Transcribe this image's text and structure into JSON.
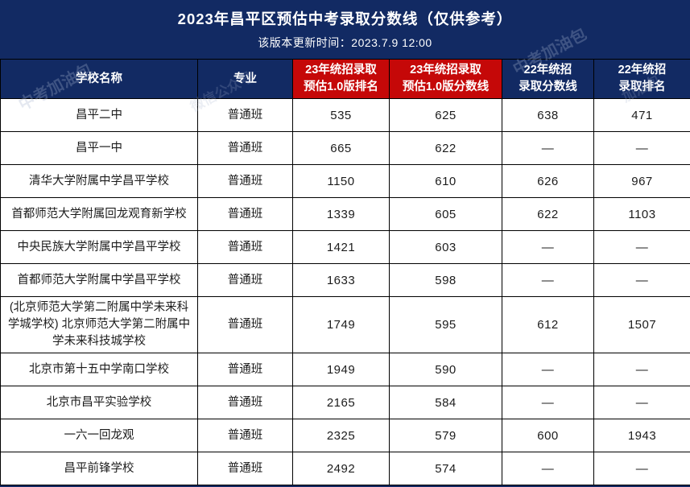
{
  "title_bar": {
    "title": "2023年昌平区预估中考录取分数线（仅供参考）",
    "subtitle": "该版本更新时间：2023.7.9 12:00"
  },
  "table": {
    "header": [
      {
        "line1": "学校名称",
        "line2": "",
        "highlight": false
      },
      {
        "line1": "专业",
        "line2": "",
        "highlight": false
      },
      {
        "line1": "23年统招录取",
        "line2": "预估1.0版排名",
        "highlight": true
      },
      {
        "line1": "23年统招录取",
        "line2": "预估1.0版分数线",
        "highlight": true
      },
      {
        "line1": "22年统招",
        "line2": "录取分数线",
        "highlight": false
      },
      {
        "line1": "22年统招",
        "line2": "录取排名",
        "highlight": false
      }
    ],
    "rows": [
      {
        "school": "昌平二中",
        "program": "普通班",
        "rank_2023": "535",
        "score_2023": "625",
        "score_2022": "638",
        "rank_2022": "471"
      },
      {
        "school": "昌平一中",
        "program": "普通班",
        "rank_2023": "665",
        "score_2023": "622",
        "score_2022": "—",
        "rank_2022": "—"
      },
      {
        "school": "清华大学附属中学昌平学校",
        "program": "普通班",
        "rank_2023": "1150",
        "score_2023": "610",
        "score_2022": "626",
        "rank_2022": "967"
      },
      {
        "school": "首都师范大学附属回龙观育新学校",
        "program": "普通班",
        "rank_2023": "1339",
        "score_2023": "605",
        "score_2022": "622",
        "rank_2022": "1103"
      },
      {
        "school": "中央民族大学附属中学昌平学校",
        "program": "普通班",
        "rank_2023": "1421",
        "score_2023": "603",
        "score_2022": "—",
        "rank_2022": "—"
      },
      {
        "school": "首都师范大学附属中学昌平学校",
        "program": "普通班",
        "rank_2023": "1633",
        "score_2023": "598",
        "score_2022": "—",
        "rank_2022": "—"
      },
      {
        "school": "(北京师范大学第二附属中学未来科学城学校) 北京师范大学第二附属中学未来科技城学校",
        "program": "普通班",
        "rank_2023": "1749",
        "score_2023": "595",
        "score_2022": "612",
        "rank_2022": "1507"
      },
      {
        "school": "北京市第十五中学南口学校",
        "program": "普通班",
        "rank_2023": "1949",
        "score_2023": "590",
        "score_2022": "—",
        "rank_2022": "—"
      },
      {
        "school": "北京市昌平实验学校",
        "program": "普通班",
        "rank_2023": "2165",
        "score_2023": "584",
        "score_2022": "—",
        "rank_2022": "—"
      },
      {
        "school": "一六一回龙观",
        "program": "普通班",
        "rank_2023": "2325",
        "score_2023": "579",
        "score_2022": "600",
        "rank_2022": "1943"
      },
      {
        "school": "昌平前锋学校",
        "program": "普通班",
        "rank_2023": "2492",
        "score_2023": "574",
        "score_2022": "—",
        "rank_2022": "—"
      }
    ]
  },
  "watermark": {
    "fragment_1": "中考加油包",
    "fragment_2": "微信公众号",
    "fragment_3": "中考加油包",
    "fragment_4": "加油包"
  },
  "colors": {
    "navy": "#122a63",
    "red": "#c50808",
    "row_background": "#ffffff",
    "border": "#000000",
    "cell_text": "#1c1c1c"
  }
}
